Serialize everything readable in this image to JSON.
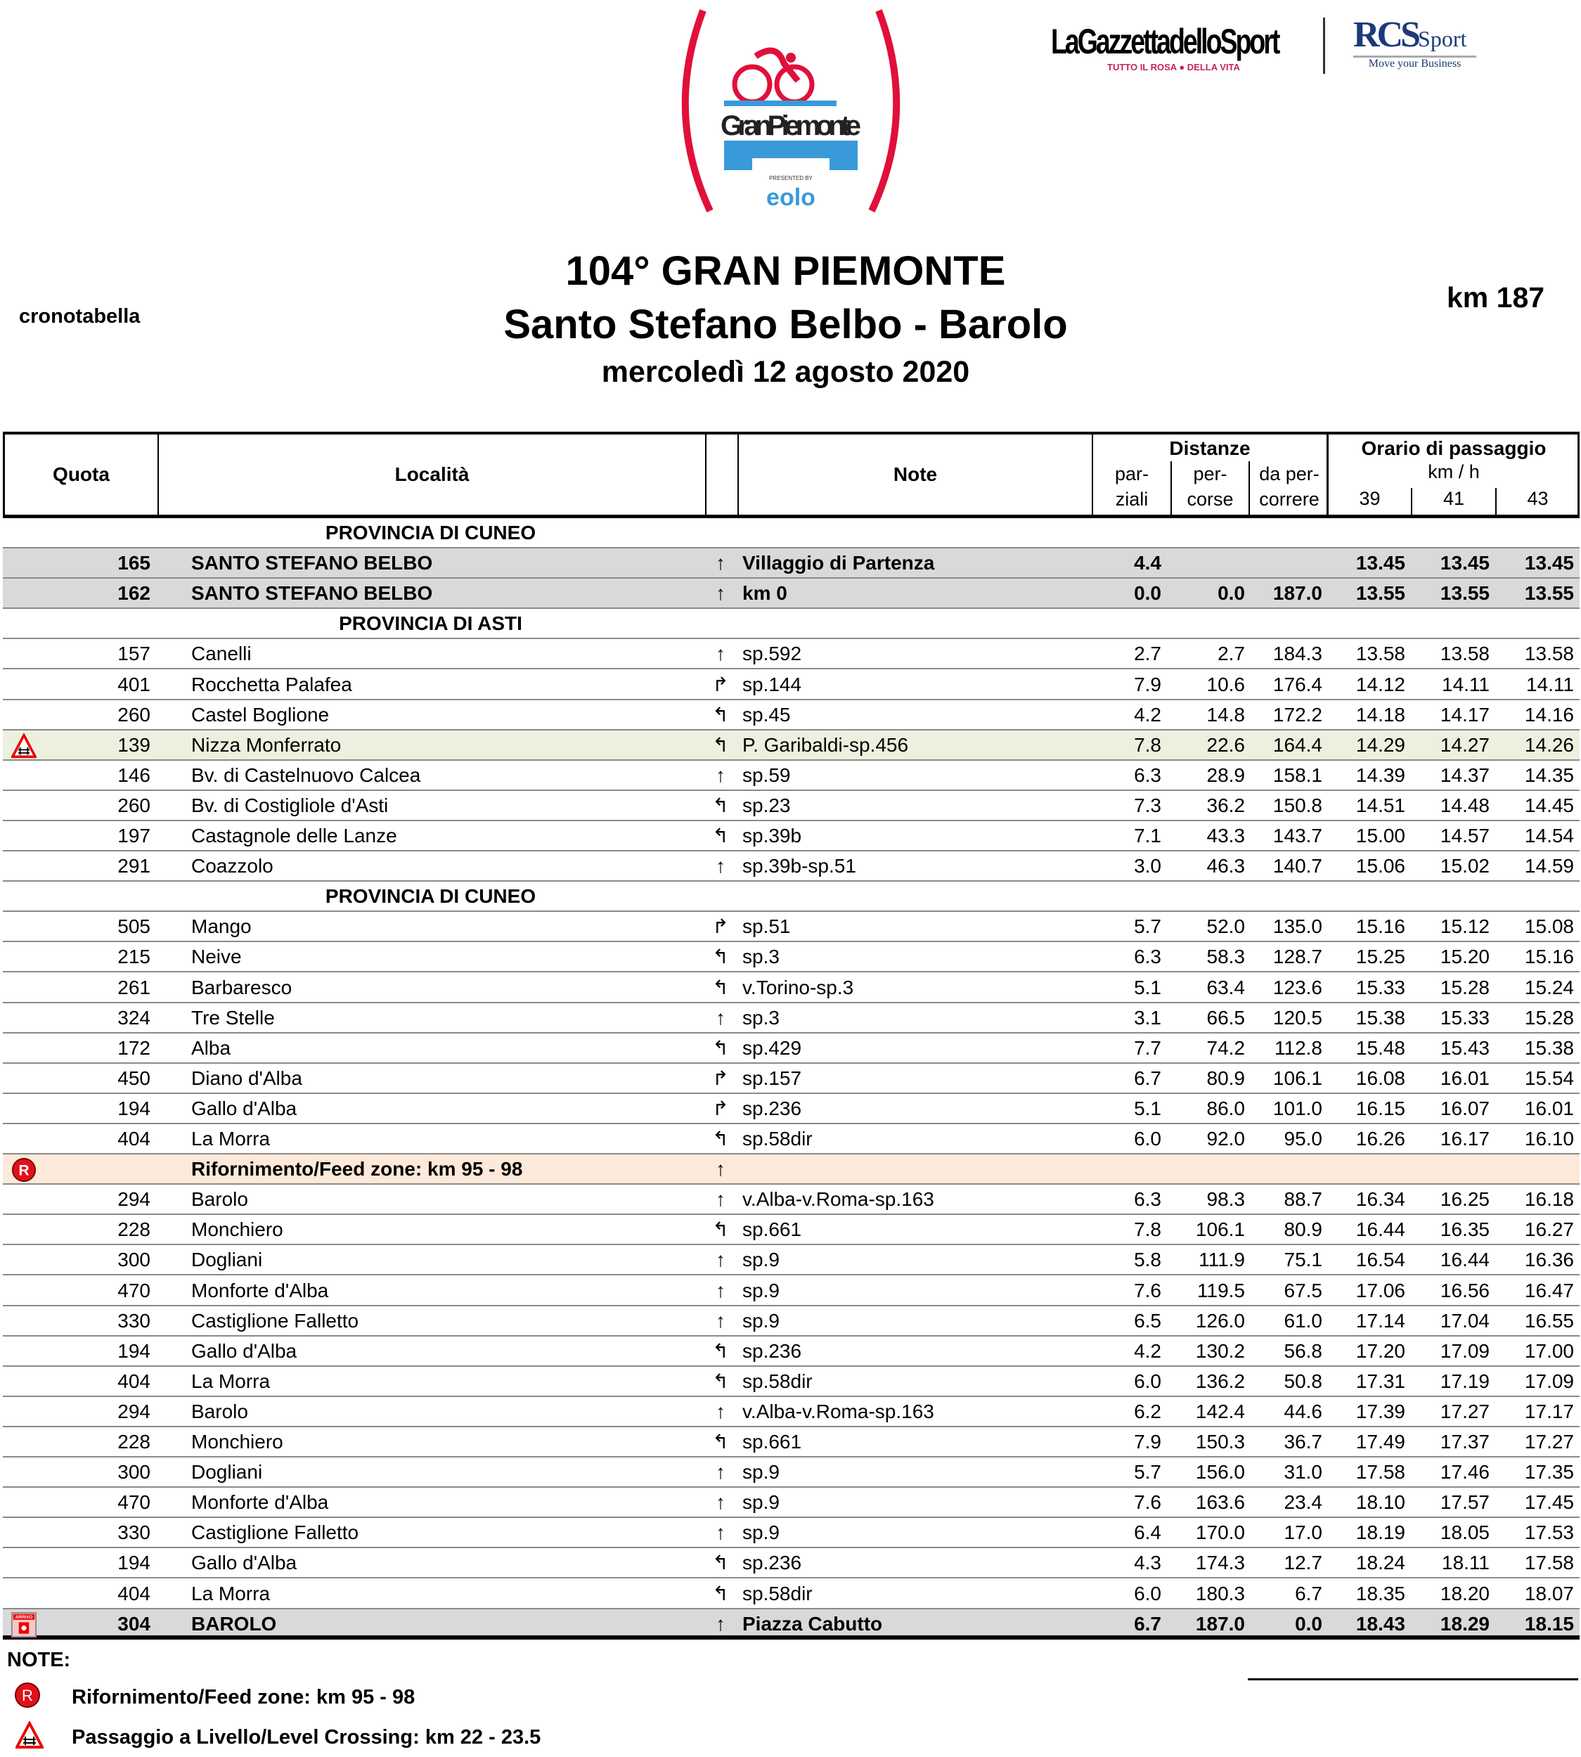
{
  "logos": {
    "granpiemonte": "GranPiemonte",
    "presented_by": "PRESENTED BY",
    "sponsor": "eolo",
    "gazzetta": "LaGazzettadelloSport",
    "gazzetta_tag": "TUTTO IL ROSA DELLA VITA",
    "rcs": "RCS",
    "rcs_sport": "Sport",
    "rcs_tag": "Move your Business",
    "brand_red": "#e0103a",
    "brand_blue": "#3a9ad9"
  },
  "header": {
    "label": "cronotabella",
    "title": "104° GRAN PIEMONTE",
    "route": "Santo Stefano Belbo - Barolo",
    "date": "mercoledì 12 agosto 2020",
    "distance": "km 187"
  },
  "table_header": {
    "quota": "Quota",
    "localita": "Località",
    "note": "Note",
    "distanze": "Distanze",
    "parziali": "par-\nziali",
    "percorse": "per-\ncorse",
    "da_percorrere": "da per-\ncorrere",
    "orario": "Orario di passaggio",
    "kmh": "km / h",
    "speeds": [
      "39",
      "41",
      "43"
    ]
  },
  "rows": [
    {
      "type": "prov",
      "loc": "PROVINCIA DI CUNEO"
    },
    {
      "type": "hl",
      "q": "165",
      "loc": "SANTO STEFANO BELBO",
      "dir": "straight",
      "note": "Villaggio di Partenza",
      "p": "4.4",
      "pc": "",
      "dp": "",
      "t": [
        "13.45",
        "13.45",
        "13.45"
      ]
    },
    {
      "type": "hl",
      "q": "162",
      "loc": "SANTO STEFANO BELBO",
      "dir": "straight",
      "note": "km 0",
      "p": "0.0",
      "pc": "0.0",
      "dp": "187.0",
      "t": [
        "13.55",
        "13.55",
        "13.55"
      ]
    },
    {
      "type": "prov",
      "loc": "PROVINCIA DI ASTI"
    },
    {
      "q": "157",
      "loc": "Canelli",
      "dir": "straight",
      "note": "sp.592",
      "p": "2.7",
      "pc": "2.7",
      "dp": "184.3",
      "t": [
        "13.58",
        "13.58",
        "13.58"
      ]
    },
    {
      "q": "401",
      "loc": "Rocchetta Palafea",
      "dir": "right",
      "note": "sp.144",
      "p": "7.9",
      "pc": "10.6",
      "dp": "176.4",
      "t": [
        "14.12",
        "14.11",
        "14.11"
      ]
    },
    {
      "q": "260",
      "loc": "Castel Boglione",
      "dir": "left",
      "note": "sp.45",
      "p": "4.2",
      "pc": "14.8",
      "dp": "172.2",
      "t": [
        "14.18",
        "14.17",
        "14.16"
      ]
    },
    {
      "type": "lvl",
      "icon": "level-crossing",
      "q": "139",
      "loc": "Nizza Monferrato",
      "dir": "left",
      "note": "P. Garibaldi-sp.456",
      "p": "7.8",
      "pc": "22.6",
      "dp": "164.4",
      "t": [
        "14.29",
        "14.27",
        "14.26"
      ]
    },
    {
      "q": "146",
      "loc": "Bv. di Castelnuovo Calcea",
      "dir": "straight",
      "note": "sp.59",
      "p": "6.3",
      "pc": "28.9",
      "dp": "158.1",
      "t": [
        "14.39",
        "14.37",
        "14.35"
      ]
    },
    {
      "q": "260",
      "loc": "Bv. di Costigliole d'Asti",
      "dir": "left",
      "note": "sp.23",
      "p": "7.3",
      "pc": "36.2",
      "dp": "150.8",
      "t": [
        "14.51",
        "14.48",
        "14.45"
      ]
    },
    {
      "q": "197",
      "loc": "Castagnole delle Lanze",
      "dir": "left",
      "note": "sp.39b",
      "p": "7.1",
      "pc": "43.3",
      "dp": "143.7",
      "t": [
        "15.00",
        "14.57",
        "14.54"
      ]
    },
    {
      "q": "291",
      "loc": "Coazzolo",
      "dir": "straight",
      "note": "sp.39b-sp.51",
      "p": "3.0",
      "pc": "46.3",
      "dp": "140.7",
      "t": [
        "15.06",
        "15.02",
        "14.59"
      ]
    },
    {
      "type": "prov",
      "loc": "PROVINCIA DI CUNEO"
    },
    {
      "q": "505",
      "loc": "Mango",
      "dir": "right",
      "note": "sp.51",
      "p": "5.7",
      "pc": "52.0",
      "dp": "135.0",
      "t": [
        "15.16",
        "15.12",
        "15.08"
      ]
    },
    {
      "q": "215",
      "loc": "Neive",
      "dir": "left",
      "note": "sp.3",
      "p": "6.3",
      "pc": "58.3",
      "dp": "128.7",
      "t": [
        "15.25",
        "15.20",
        "15.16"
      ]
    },
    {
      "q": "261",
      "loc": "Barbaresco",
      "dir": "left",
      "note": "v.Torino-sp.3",
      "p": "5.1",
      "pc": "63.4",
      "dp": "123.6",
      "t": [
        "15.33",
        "15.28",
        "15.24"
      ]
    },
    {
      "q": "324",
      "loc": "Tre Stelle",
      "dir": "straight",
      "note": "sp.3",
      "p": "3.1",
      "pc": "66.5",
      "dp": "120.5",
      "t": [
        "15.38",
        "15.33",
        "15.28"
      ]
    },
    {
      "q": "172",
      "loc": "Alba",
      "dir": "left",
      "note": "sp.429",
      "p": "7.7",
      "pc": "74.2",
      "dp": "112.8",
      "t": [
        "15.48",
        "15.43",
        "15.38"
      ]
    },
    {
      "q": "450",
      "loc": "Diano d'Alba",
      "dir": "right",
      "note": "sp.157",
      "p": "6.7",
      "pc": "80.9",
      "dp": "106.1",
      "t": [
        "16.08",
        "16.01",
        "15.54"
      ]
    },
    {
      "q": "194",
      "loc": "Gallo d'Alba",
      "dir": "right",
      "note": "sp.236",
      "p": "5.1",
      "pc": "86.0",
      "dp": "101.0",
      "t": [
        "16.15",
        "16.07",
        "16.01"
      ]
    },
    {
      "q": "404",
      "loc": "La Morra",
      "dir": "left",
      "note": "sp.58dir",
      "p": "6.0",
      "pc": "92.0",
      "dp": "95.0",
      "t": [
        "16.26",
        "16.17",
        "16.10"
      ]
    },
    {
      "type": "feed",
      "icon": "feed-zone",
      "loc": "Rifornimento/Feed zone: km 95 - 98",
      "dir": "straight"
    },
    {
      "q": "294",
      "loc": "Barolo",
      "dir": "straight",
      "note": "v.Alba-v.Roma-sp.163",
      "p": "6.3",
      "pc": "98.3",
      "dp": "88.7",
      "t": [
        "16.34",
        "16.25",
        "16.18"
      ]
    },
    {
      "q": "228",
      "loc": "Monchiero",
      "dir": "left",
      "note": "sp.661",
      "p": "7.8",
      "pc": "106.1",
      "dp": "80.9",
      "t": [
        "16.44",
        "16.35",
        "16.27"
      ]
    },
    {
      "q": "300",
      "loc": "Dogliani",
      "dir": "straight",
      "note": "sp.9",
      "p": "5.8",
      "pc": "111.9",
      "dp": "75.1",
      "t": [
        "16.54",
        "16.44",
        "16.36"
      ]
    },
    {
      "q": "470",
      "loc": "Monforte d'Alba",
      "dir": "straight",
      "note": "sp.9",
      "p": "7.6",
      "pc": "119.5",
      "dp": "67.5",
      "t": [
        "17.06",
        "16.56",
        "16.47"
      ]
    },
    {
      "q": "330",
      "loc": "Castiglione Falletto",
      "dir": "straight",
      "note": "sp.9",
      "p": "6.5",
      "pc": "126.0",
      "dp": "61.0",
      "t": [
        "17.14",
        "17.04",
        "16.55"
      ]
    },
    {
      "q": "194",
      "loc": "Gallo d'Alba",
      "dir": "left",
      "note": "sp.236",
      "p": "4.2",
      "pc": "130.2",
      "dp": "56.8",
      "t": [
        "17.20",
        "17.09",
        "17.00"
      ]
    },
    {
      "q": "404",
      "loc": "La Morra",
      "dir": "left",
      "note": "sp.58dir",
      "p": "6.0",
      "pc": "136.2",
      "dp": "50.8",
      "t": [
        "17.31",
        "17.19",
        "17.09"
      ]
    },
    {
      "q": "294",
      "loc": "Barolo",
      "dir": "straight",
      "note": "v.Alba-v.Roma-sp.163",
      "p": "6.2",
      "pc": "142.4",
      "dp": "44.6",
      "t": [
        "17.39",
        "17.27",
        "17.17"
      ]
    },
    {
      "q": "228",
      "loc": "Monchiero",
      "dir": "left",
      "note": "sp.661",
      "p": "7.9",
      "pc": "150.3",
      "dp": "36.7",
      "t": [
        "17.49",
        "17.37",
        "17.27"
      ]
    },
    {
      "q": "300",
      "loc": "Dogliani",
      "dir": "straight",
      "note": "sp.9",
      "p": "5.7",
      "pc": "156.0",
      "dp": "31.0",
      "t": [
        "17.58",
        "17.46",
        "17.35"
      ]
    },
    {
      "q": "470",
      "loc": "Monforte d'Alba",
      "dir": "straight",
      "note": "sp.9",
      "p": "7.6",
      "pc": "163.6",
      "dp": "23.4",
      "t": [
        "18.10",
        "17.57",
        "17.45"
      ]
    },
    {
      "q": "330",
      "loc": "Castiglione Falletto",
      "dir": "straight",
      "note": "sp.9",
      "p": "6.4",
      "pc": "170.0",
      "dp": "17.0",
      "t": [
        "18.19",
        "18.05",
        "17.53"
      ]
    },
    {
      "q": "194",
      "loc": "Gallo d'Alba",
      "dir": "left",
      "note": "sp.236",
      "p": "4.3",
      "pc": "174.3",
      "dp": "12.7",
      "t": [
        "18.24",
        "18.11",
        "17.58"
      ]
    },
    {
      "q": "404",
      "loc": "La Morra",
      "dir": "left",
      "note": "sp.58dir",
      "p": "6.0",
      "pc": "180.3",
      "dp": "6.7",
      "t": [
        "18.35",
        "18.20",
        "18.07"
      ]
    },
    {
      "type": "fin",
      "icon": "finish-arrivo",
      "icon_text": "ARRIVO",
      "q": "304",
      "loc": "BAROLO",
      "dir": "straight",
      "note": "Piazza Cabutto",
      "p": "6.7",
      "pc": "187.0",
      "dp": "0.0",
      "t": [
        "18.43",
        "18.29",
        "18.15"
      ]
    }
  ],
  "notes": {
    "title": "NOTE:",
    "feed": "Rifornimento/Feed zone: km 95 - 98",
    "level": "Passaggio a Livello/Level Crossing:  km 22 - 23.5"
  }
}
